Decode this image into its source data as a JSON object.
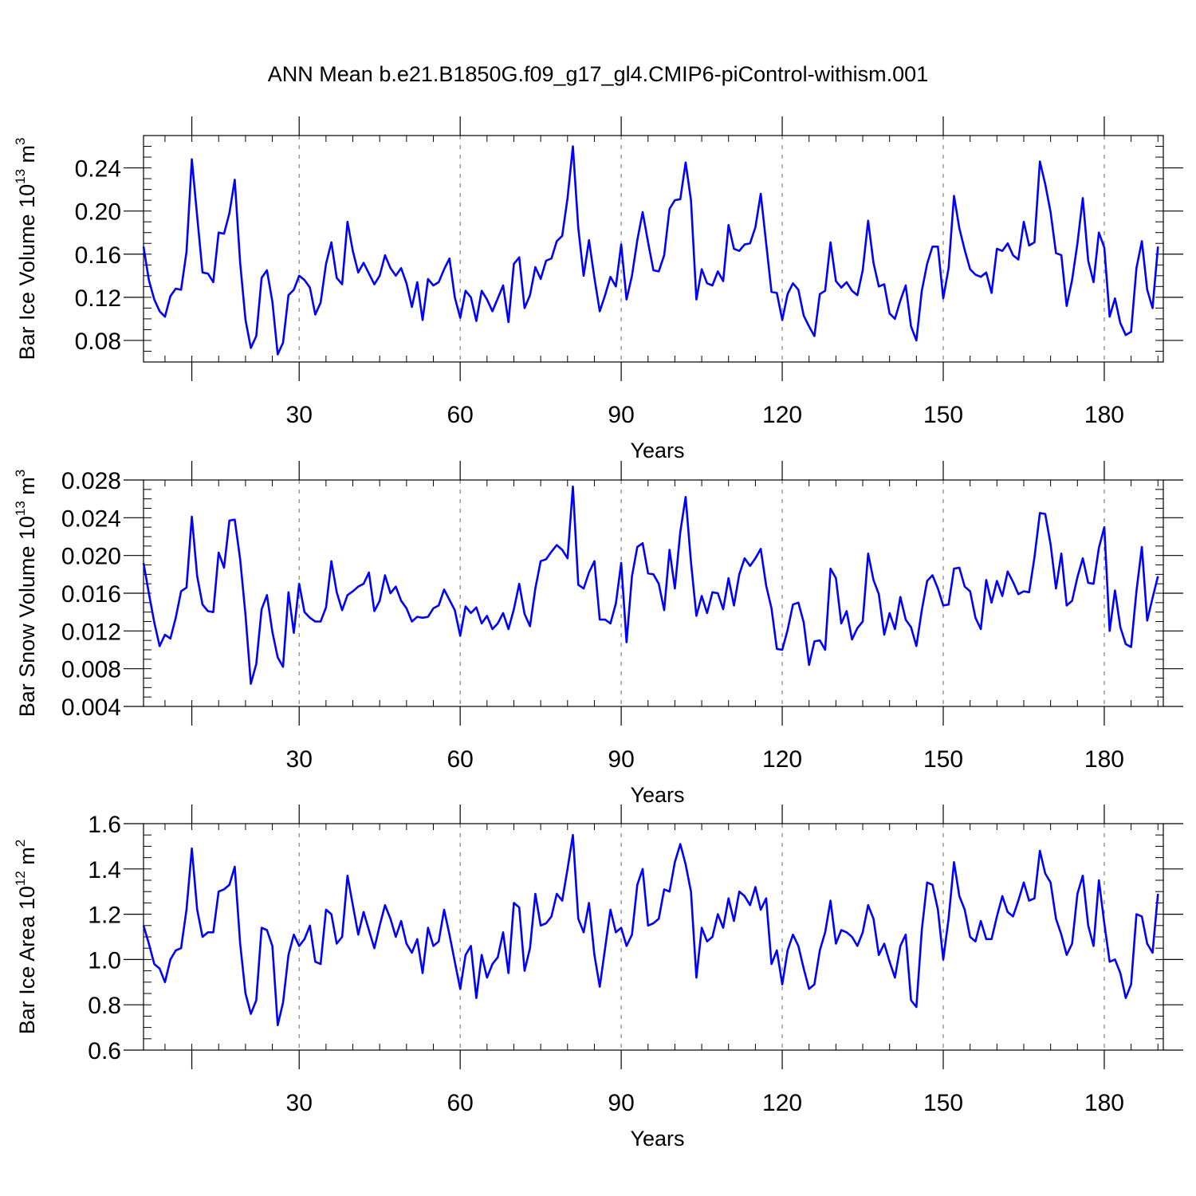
{
  "title": "ANN Mean b.e21.B1850G.f09_g17_gl4.CMIP6-piControl-withism.001",
  "colors": {
    "line": "#0000ff",
    "axis": "#000000",
    "grid": "#808080"
  },
  "chart_data": [
    {
      "type": "line",
      "ylabel": "Bar Ice Volume 10",
      "ylabel_exp": "13",
      "ylabel_unit": " m",
      "ylabel_unit_exp": "3",
      "xlabel": "Years",
      "xlim": [
        1,
        191
      ],
      "ylim": [
        0.06,
        0.27
      ],
      "xticks": [
        30,
        60,
        90,
        120,
        150,
        180
      ],
      "xtick_labels": [
        "30",
        "60",
        "90",
        "120",
        "150",
        "180"
      ],
      "yticks": [
        0.08,
        0.12,
        0.16,
        0.2,
        0.24
      ],
      "ytick_labels": [
        "0.08",
        "0.12",
        "0.16",
        "0.20",
        "0.24"
      ],
      "x_start": 1,
      "values": [
        0.167,
        0.136,
        0.118,
        0.107,
        0.102,
        0.121,
        0.128,
        0.127,
        0.162,
        0.248,
        0.195,
        0.143,
        0.142,
        0.134,
        0.18,
        0.179,
        0.198,
        0.229,
        0.152,
        0.099,
        0.073,
        0.084,
        0.138,
        0.145,
        0.116,
        0.067,
        0.078,
        0.122,
        0.127,
        0.14,
        0.136,
        0.129,
        0.104,
        0.115,
        0.151,
        0.171,
        0.138,
        0.132,
        0.19,
        0.163,
        0.143,
        0.152,
        0.142,
        0.132,
        0.14,
        0.159,
        0.147,
        0.14,
        0.147,
        0.133,
        0.111,
        0.134,
        0.099,
        0.137,
        0.131,
        0.134,
        0.146,
        0.156,
        0.12,
        0.101,
        0.126,
        0.12,
        0.098,
        0.126,
        0.118,
        0.107,
        0.119,
        0.131,
        0.097,
        0.151,
        0.157,
        0.11,
        0.122,
        0.148,
        0.137,
        0.154,
        0.156,
        0.172,
        0.177,
        0.212,
        0.26,
        0.184,
        0.14,
        0.173,
        0.138,
        0.107,
        0.122,
        0.139,
        0.13,
        0.169,
        0.118,
        0.14,
        0.173,
        0.199,
        0.171,
        0.145,
        0.144,
        0.159,
        0.202,
        0.21,
        0.211,
        0.245,
        0.21,
        0.118,
        0.146,
        0.133,
        0.131,
        0.144,
        0.135,
        0.187,
        0.165,
        0.163,
        0.169,
        0.17,
        0.185,
        0.216,
        0.17,
        0.125,
        0.124,
        0.099,
        0.123,
        0.133,
        0.127,
        0.103,
        0.093,
        0.084,
        0.123,
        0.126,
        0.171,
        0.135,
        0.129,
        0.134,
        0.126,
        0.122,
        0.145,
        0.191,
        0.152,
        0.13,
        0.132,
        0.105,
        0.1,
        0.117,
        0.131,
        0.093,
        0.08,
        0.126,
        0.151,
        0.167,
        0.167,
        0.119,
        0.147,
        0.214,
        0.184,
        0.164,
        0.146,
        0.141,
        0.139,
        0.143,
        0.124,
        0.165,
        0.163,
        0.17,
        0.159,
        0.155,
        0.19,
        0.168,
        0.171,
        0.246,
        0.225,
        0.199,
        0.161,
        0.159,
        0.112,
        0.136,
        0.17,
        0.212,
        0.154,
        0.134,
        0.18,
        0.166,
        0.102,
        0.119,
        0.096,
        0.085,
        0.088,
        0.147,
        0.172,
        0.127,
        0.11,
        0.167
      ]
    },
    {
      "type": "line",
      "ylabel": "Bar Snow Volume 10",
      "ylabel_exp": "13",
      "ylabel_unit": " m",
      "ylabel_unit_exp": "3",
      "xlabel": "Years",
      "xlim": [
        1,
        191
      ],
      "ylim": [
        0.004,
        0.028
      ],
      "xticks": [
        30,
        60,
        90,
        120,
        150,
        180
      ],
      "xtick_labels": [
        "30",
        "60",
        "90",
        "120",
        "150",
        "180"
      ],
      "yticks": [
        0.004,
        0.008,
        0.012,
        0.016,
        0.02,
        0.024,
        0.028
      ],
      "ytick_labels": [
        "0.004",
        "0.008",
        "0.012",
        "0.016",
        "0.020",
        "0.024",
        "0.028"
      ],
      "x_start": 1,
      "values": [
        0.0192,
        0.016,
        0.0129,
        0.0104,
        0.0116,
        0.0112,
        0.0134,
        0.0162,
        0.0166,
        0.0241,
        0.0178,
        0.0148,
        0.0141,
        0.014,
        0.0203,
        0.0187,
        0.0237,
        0.0238,
        0.0196,
        0.0137,
        0.0064,
        0.0085,
        0.0143,
        0.0158,
        0.0119,
        0.0092,
        0.0082,
        0.0161,
        0.0118,
        0.017,
        0.014,
        0.0134,
        0.013,
        0.013,
        0.0145,
        0.0194,
        0.0161,
        0.0142,
        0.0158,
        0.0162,
        0.0167,
        0.017,
        0.0182,
        0.0141,
        0.0152,
        0.0179,
        0.016,
        0.0167,
        0.0152,
        0.0144,
        0.013,
        0.0135,
        0.0134,
        0.0135,
        0.0144,
        0.0147,
        0.0164,
        0.0153,
        0.0142,
        0.0115,
        0.0146,
        0.0139,
        0.0145,
        0.0128,
        0.0136,
        0.0122,
        0.0128,
        0.0139,
        0.0122,
        0.0143,
        0.017,
        0.0138,
        0.0125,
        0.0165,
        0.0194,
        0.0196,
        0.0204,
        0.0211,
        0.0206,
        0.0197,
        0.0273,
        0.0169,
        0.0165,
        0.0182,
        0.0194,
        0.0132,
        0.0132,
        0.0128,
        0.0149,
        0.0192,
        0.0108,
        0.0178,
        0.0209,
        0.0213,
        0.0181,
        0.018,
        0.017,
        0.0142,
        0.0206,
        0.0165,
        0.0225,
        0.0262,
        0.0193,
        0.0136,
        0.0157,
        0.0139,
        0.0161,
        0.016,
        0.0143,
        0.0176,
        0.0147,
        0.018,
        0.0197,
        0.0189,
        0.0197,
        0.0207,
        0.0168,
        0.0144,
        0.0101,
        0.01,
        0.0121,
        0.0148,
        0.015,
        0.0129,
        0.0084,
        0.0109,
        0.011,
        0.01,
        0.0186,
        0.0176,
        0.0128,
        0.0141,
        0.0111,
        0.0123,
        0.013,
        0.0202,
        0.0174,
        0.0159,
        0.0116,
        0.0139,
        0.0122,
        0.0156,
        0.0132,
        0.0124,
        0.0104,
        0.0142,
        0.0173,
        0.0179,
        0.0165,
        0.0147,
        0.0148,
        0.0186,
        0.0187,
        0.0167,
        0.0162,
        0.0134,
        0.0122,
        0.0174,
        0.015,
        0.0173,
        0.0157,
        0.0183,
        0.0172,
        0.0159,
        0.0162,
        0.0161,
        0.0198,
        0.0245,
        0.0244,
        0.0212,
        0.0165,
        0.0202,
        0.0147,
        0.0152,
        0.0177,
        0.0197,
        0.0171,
        0.017,
        0.0208,
        0.023,
        0.012,
        0.0163,
        0.0124,
        0.0106,
        0.0103,
        0.0162,
        0.0209,
        0.0131,
        0.0155,
        0.0178
      ]
    },
    {
      "type": "line",
      "ylabel": "Bar Ice Area 10",
      "ylabel_exp": "12",
      "ylabel_unit": " m",
      "ylabel_unit_exp": "2",
      "xlabel": "Years",
      "xlim": [
        1,
        191
      ],
      "ylim": [
        0.6,
        1.6
      ],
      "xticks": [
        30,
        60,
        90,
        120,
        150,
        180
      ],
      "xtick_labels": [
        "30",
        "60",
        "90",
        "120",
        "150",
        "180"
      ],
      "yticks": [
        0.6,
        0.8,
        1.0,
        1.2,
        1.4,
        1.6
      ],
      "ytick_labels": [
        "0.6",
        "0.8",
        "1.0",
        "1.2",
        "1.4",
        "1.6"
      ],
      "x_start": 1,
      "values": [
        1.15,
        1.07,
        0.98,
        0.96,
        0.9,
        1.0,
        1.04,
        1.05,
        1.22,
        1.49,
        1.22,
        1.1,
        1.12,
        1.12,
        1.3,
        1.31,
        1.33,
        1.41,
        1.07,
        0.85,
        0.76,
        0.82,
        1.14,
        1.13,
        1.06,
        0.71,
        0.81,
        1.02,
        1.11,
        1.06,
        1.09,
        1.15,
        0.99,
        0.98,
        1.22,
        1.2,
        1.07,
        1.1,
        1.37,
        1.24,
        1.11,
        1.21,
        1.13,
        1.05,
        1.15,
        1.24,
        1.18,
        1.1,
        1.17,
        1.07,
        1.03,
        1.09,
        0.94,
        1.14,
        1.06,
        1.08,
        1.22,
        1.11,
        0.99,
        0.87,
        1.02,
        1.06,
        0.83,
        1.02,
        0.92,
        0.98,
        1.01,
        1.12,
        0.94,
        1.25,
        1.23,
        0.95,
        1.05,
        1.29,
        1.15,
        1.16,
        1.19,
        1.29,
        1.26,
        1.4,
        1.55,
        1.18,
        1.12,
        1.25,
        1.02,
        0.88,
        1.05,
        1.22,
        1.12,
        1.14,
        1.06,
        1.11,
        1.33,
        1.4,
        1.15,
        1.16,
        1.18,
        1.31,
        1.3,
        1.43,
        1.51,
        1.42,
        1.3,
        0.92,
        1.14,
        1.08,
        1.1,
        1.2,
        1.14,
        1.27,
        1.17,
        1.3,
        1.28,
        1.24,
        1.32,
        1.22,
        1.27,
        0.98,
        1.04,
        0.89,
        1.04,
        1.11,
        1.06,
        0.96,
        0.87,
        0.89,
        1.04,
        1.12,
        1.26,
        1.07,
        1.13,
        1.12,
        1.1,
        1.06,
        1.12,
        1.24,
        1.18,
        1.02,
        1.07,
        0.99,
        0.92,
        1.06,
        1.11,
        0.82,
        0.79,
        1.13,
        1.34,
        1.33,
        1.22,
        1.0,
        1.18,
        1.43,
        1.28,
        1.22,
        1.1,
        1.08,
        1.17,
        1.09,
        1.09,
        1.19,
        1.28,
        1.21,
        1.19,
        1.26,
        1.34,
        1.26,
        1.27,
        1.48,
        1.38,
        1.34,
        1.18,
        1.11,
        1.02,
        1.07,
        1.29,
        1.37,
        1.15,
        1.06,
        1.35,
        1.16,
        0.99,
        1.0,
        0.94,
        0.83,
        0.89,
        1.2,
        1.19,
        1.07,
        1.03,
        1.29
      ]
    }
  ]
}
